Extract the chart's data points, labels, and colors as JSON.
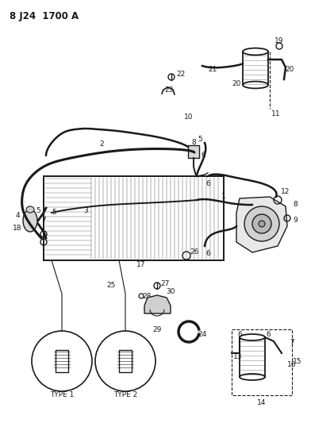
{
  "title": "8 J24  1700 A",
  "bg_color": "#ffffff",
  "line_color": "#1a1a1a",
  "label_color": "#1a1a1a",
  "figsize": [
    3.92,
    5.33
  ],
  "dpi": 100
}
